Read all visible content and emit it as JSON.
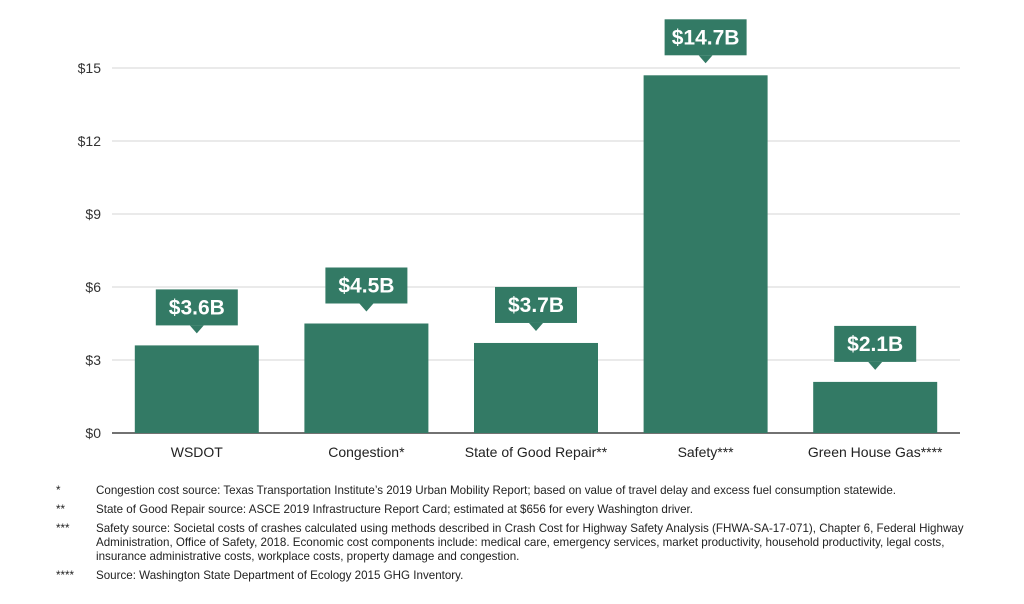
{
  "chart_data": {
    "type": "bar",
    "categories": [
      "WSDOT",
      "Congestion*",
      "State of Good Repair**",
      "Safety***",
      "Green House Gas****"
    ],
    "values": [
      3.6,
      4.5,
      3.7,
      14.7,
      2.1
    ],
    "data_labels": [
      "$3.6B",
      "$4.5B",
      "$3.7B",
      "$14.7B",
      "$2.1B"
    ],
    "yticks": [
      "$0",
      "$3",
      "$6",
      "$9",
      "$12",
      "$15"
    ],
    "ylim": [
      0,
      15
    ],
    "title": "",
    "xlabel": "",
    "ylabel": "",
    "grid": true,
    "legend": "none",
    "colors": {
      "bar": "#337a65",
      "grid": "#d6d6d6",
      "axis": "#444444"
    }
  },
  "footnotes": [
    {
      "mark": "*",
      "text": "Congestion cost source: Texas Transportation Institute’s 2019 Urban Mobility Report; based on value of travel delay and excess fuel consumption statewide."
    },
    {
      "mark": "**",
      "text": "State of Good Repair source: ASCE 2019 Infrastructure Report Card; estimated at $656 for every Washington driver."
    },
    {
      "mark": "***",
      "text": "Safety source: Societal costs of crashes calculated using methods described in Crash Cost for Highway Safety Analysis (FHWA-SA-17-071), Chapter 6, Federal Highway Administration, Office of Safety, 2018. Economic cost components include: medical care, emergency services, market productivity, household productivity, legal costs, insurance administrative costs, workplace costs, property damage and congestion."
    },
    {
      "mark": "****",
      "text": "Source: Washington State Department of Ecology 2015 GHG Inventory."
    }
  ]
}
